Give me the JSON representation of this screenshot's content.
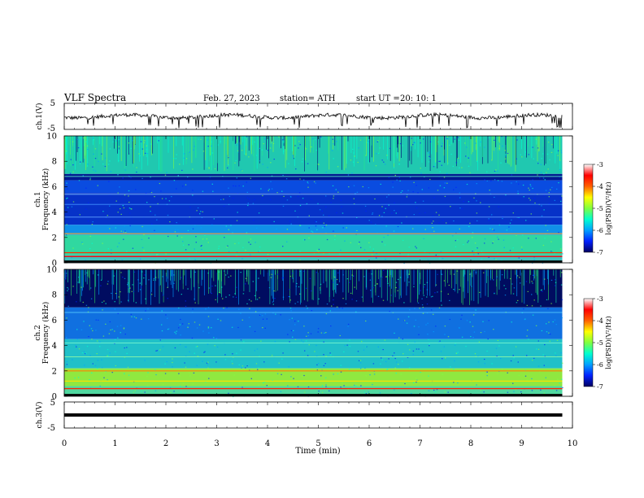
{
  "header": {
    "title": "VLF  Spectra",
    "date": "Feb. 27, 2023",
    "station": "station= ATH",
    "start_label": "start  UT  =",
    "start_time": "20: 10: 1"
  },
  "axes": {
    "x_label": "Time  (min)",
    "x_ticks": [
      "0",
      "1",
      "2",
      "3",
      "4",
      "5",
      "6",
      "7",
      "8",
      "9",
      "10"
    ],
    "ch1_waveform_label": "ch.1(V)",
    "ch3_waveform_label": "ch.3(V)",
    "wave_ticks": [
      "5",
      "-5"
    ],
    "ch1_spec_label": "ch.1",
    "ch2_spec_label": "ch.2",
    "freq_label": "Frequency  (kHz)",
    "freq_ticks": [
      "10",
      "8",
      "6",
      "4",
      "2",
      "0"
    ]
  },
  "colorbar": {
    "label": "log(PSD)(V²/Hz)",
    "ticks": [
      "-3",
      "-4",
      "-5",
      "-6",
      "-7"
    ],
    "colors": [
      "#000060",
      "#0020ff",
      "#00a0ff",
      "#00ffd0",
      "#80ff40",
      "#ffff00",
      "#ff6000",
      "#ff0000",
      "#ffffff"
    ]
  },
  "chart_data": [
    {
      "type": "line",
      "name": "ch.1 waveform",
      "xlabel": "Time  (min)",
      "ylabel": "ch.1(V)",
      "xlim": [
        0,
        10
      ],
      "ylim": [
        -5,
        5
      ],
      "data_extent_min": [
        0,
        9.8
      ],
      "baseline_v": 0,
      "spikes": "frequent sharp negative spikes"
    },
    {
      "type": "heatmap",
      "name": "ch.1 spectrogram",
      "xlabel": "Time  (min)",
      "ylabel": "Frequency  (kHz)",
      "xlim": [
        0,
        10
      ],
      "ylim": [
        0,
        10
      ],
      "zlabel": "log(PSD)(V²/Hz)",
      "zlim": [
        -7,
        -3
      ],
      "bands": [
        {
          "f_khz": [
            7,
            10
          ],
          "level": "high (green-cyan), with vertical impulsive streaks"
        },
        {
          "f_khz": [
            6.5,
            7
          ],
          "level": "low (dark blue)"
        },
        {
          "f_khz": [
            3,
            6.5
          ],
          "level": "low (blue) with horizontal transmitter lines"
        },
        {
          "f_khz": [
            0.5,
            3
          ],
          "level": "medium-high (cyan-green)"
        },
        {
          "f_khz": [
            0,
            0.5
          ],
          "level": "high (red lines)"
        }
      ]
    },
    {
      "type": "heatmap",
      "name": "ch.2 spectrogram",
      "xlabel": "Time  (min)",
      "ylabel": "Frequency  (kHz)",
      "xlim": [
        0,
        10
      ],
      "ylim": [
        0,
        10
      ],
      "zlabel": "log(PSD)(V²/Hz)",
      "zlim": [
        -7,
        -3
      ],
      "bands": [
        {
          "f_khz": [
            7,
            10
          ],
          "level": "low (dark blue), with green vertical streaks"
        },
        {
          "f_khz": [
            4.5,
            7
          ],
          "level": "medium (cyan-blue)"
        },
        {
          "f_khz": [
            2,
            4.5
          ],
          "level": "medium (cyan)"
        },
        {
          "f_khz": [
            0.5,
            2
          ],
          "level": "high (green-yellow)"
        },
        {
          "f_khz": [
            0,
            0.5
          ],
          "level": "high (red lines)"
        }
      ]
    },
    {
      "type": "line",
      "name": "ch.3 waveform",
      "xlabel": "Time  (min)",
      "ylabel": "ch.3(V)",
      "xlim": [
        0,
        10
      ],
      "ylim": [
        -5,
        5
      ],
      "data_extent_min": [
        0,
        9.8
      ],
      "baseline_v": 0
    }
  ]
}
